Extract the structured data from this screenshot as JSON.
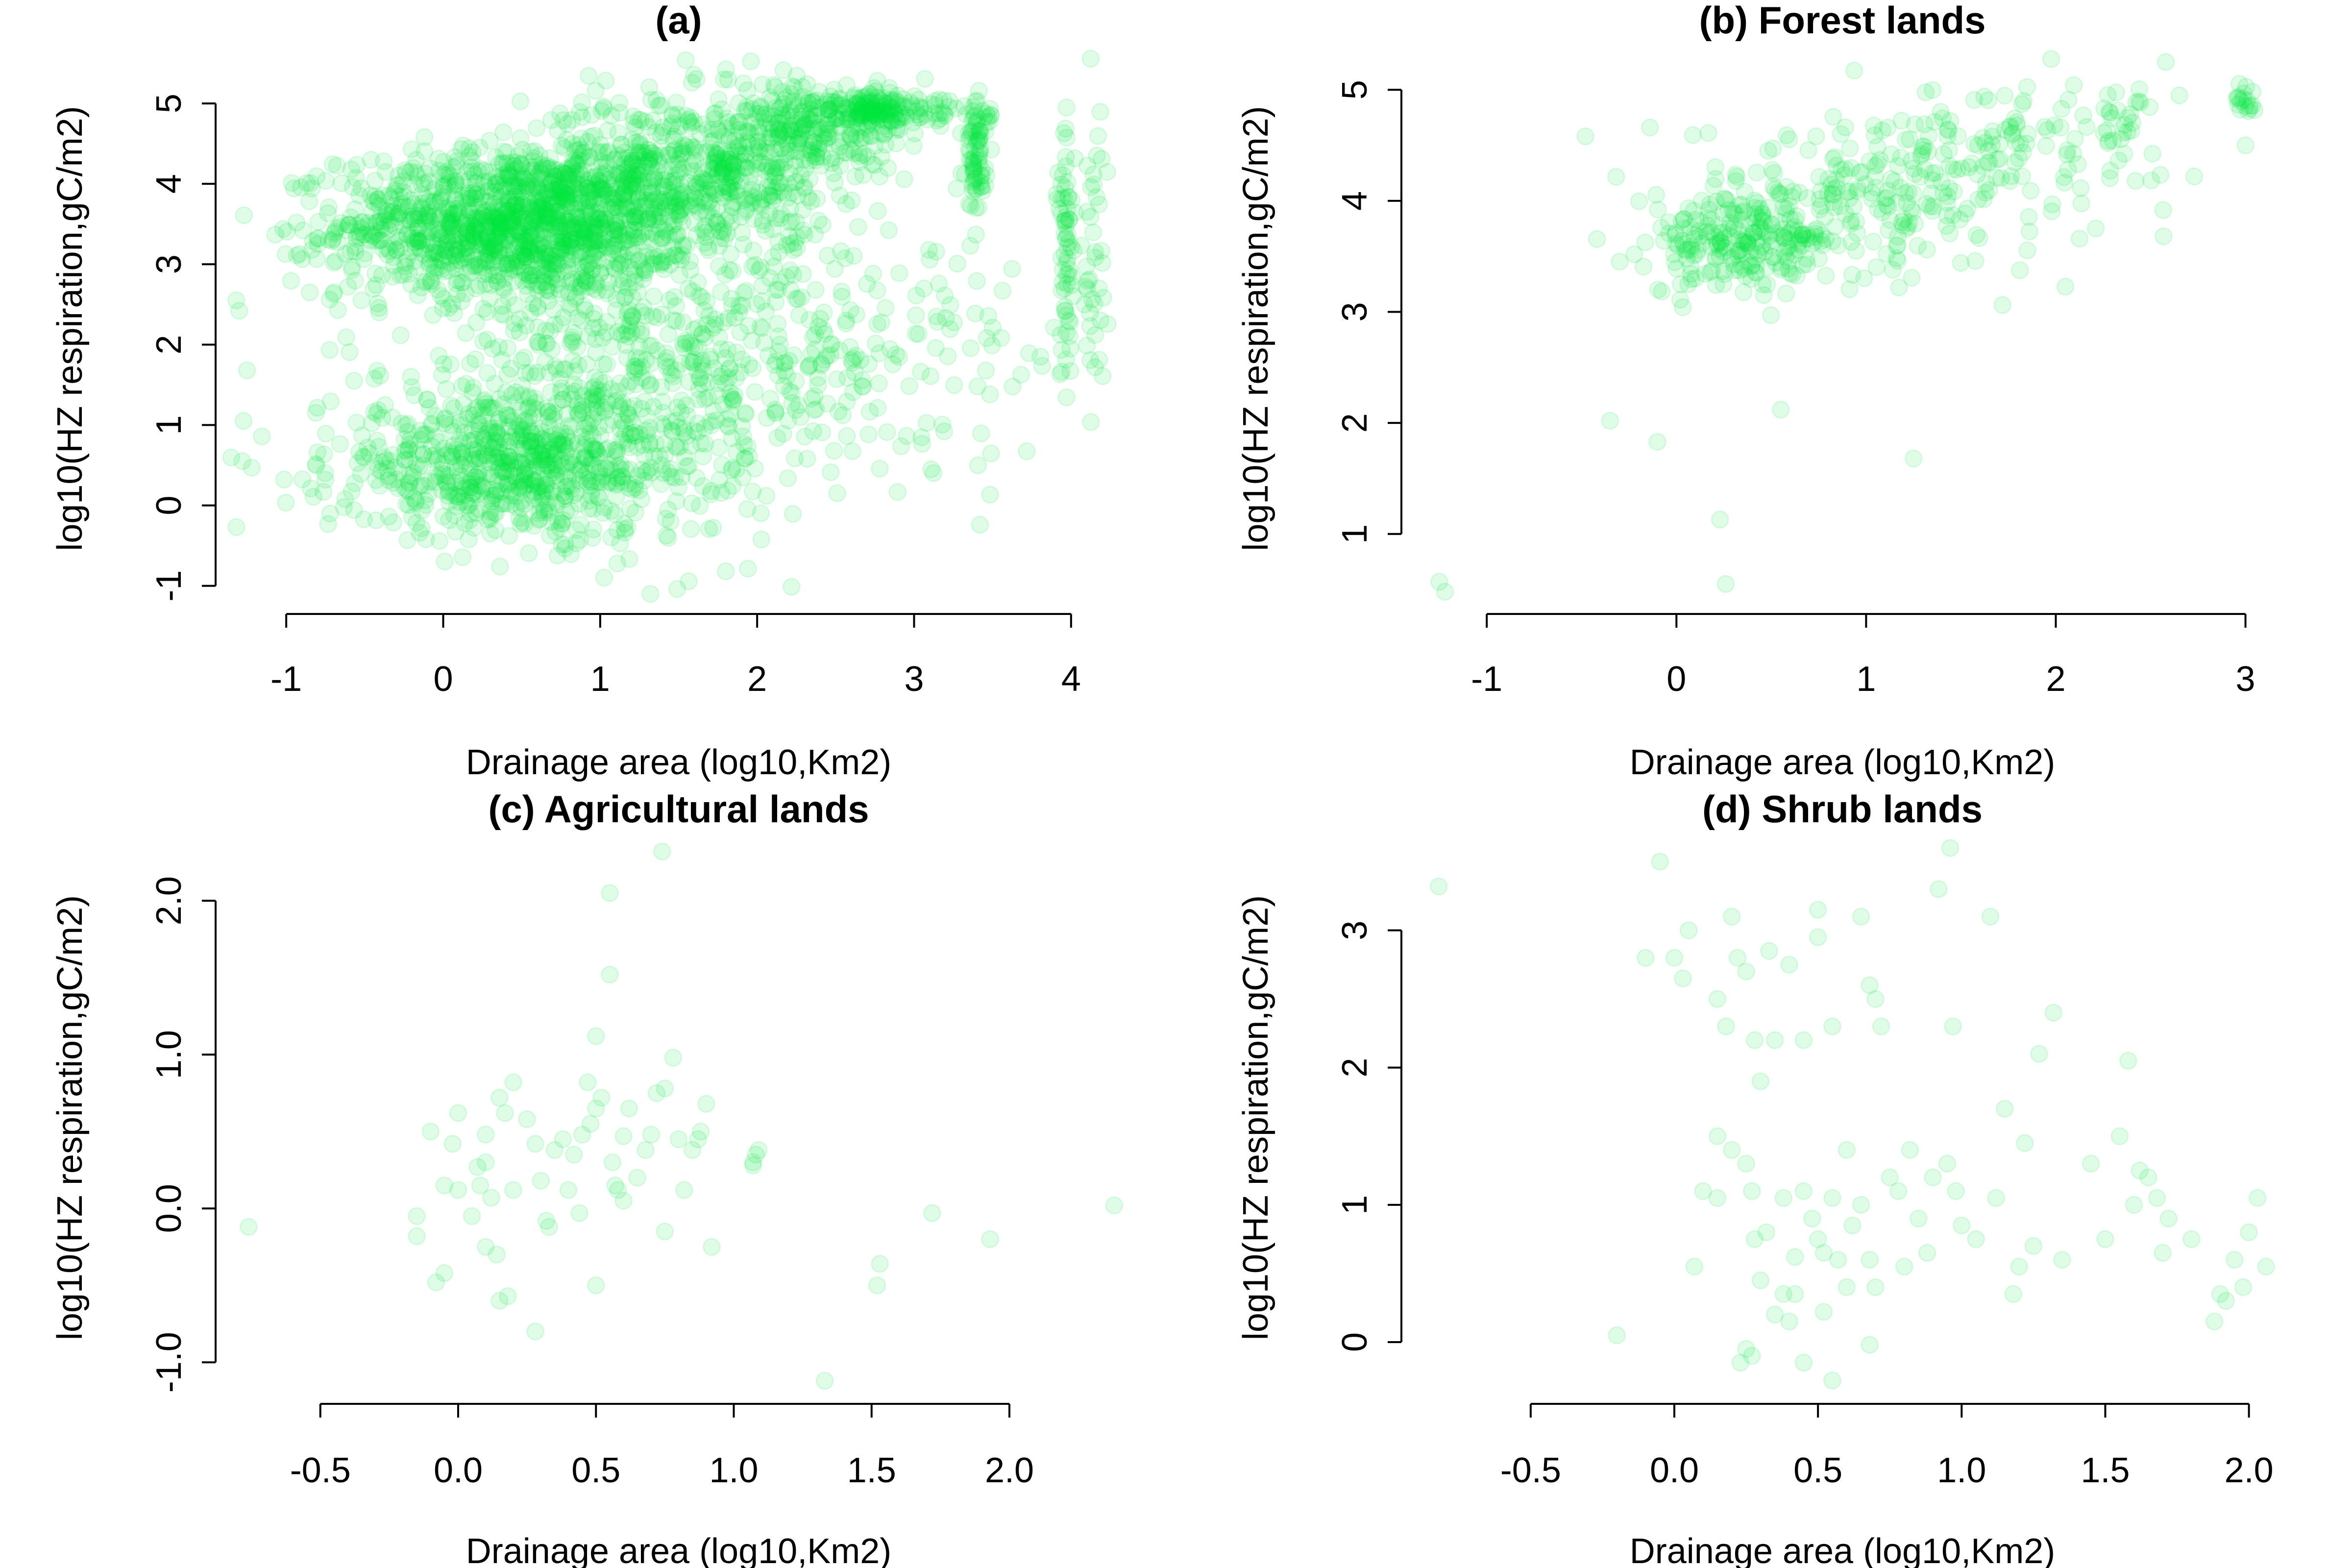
{
  "accent_color": "#00e83a",
  "point_alpha": 0.13,
  "chart_data": [
    {
      "type": "scatter",
      "title": "(a)",
      "xlabel": "Drainage area (log10,Km2)",
      "ylabel": "log10(HZ respiration,gC/m2)",
      "xlim": [
        -1.45,
        4.45
      ],
      "ylim": [
        -1.35,
        5.75
      ],
      "xticks": [
        -1,
        0,
        1,
        2,
        3,
        4
      ],
      "yticks": [
        -1,
        0,
        1,
        2,
        3,
        4,
        5
      ],
      "ytick_labels_rotated": true,
      "clusters": [
        {
          "cx": 0.45,
          "cy": 3.5,
          "sx": 0.55,
          "sy": 0.45,
          "n": 1300
        },
        {
          "cx": 1.5,
          "cy": 4.1,
          "sx": 0.5,
          "sy": 0.5,
          "n": 600
        },
        {
          "cx": 2.3,
          "cy": 4.7,
          "sx": 0.3,
          "sy": 0.3,
          "n": 250
        },
        {
          "cx": 0.5,
          "cy": 0.5,
          "sx": 0.6,
          "sy": 0.45,
          "n": 750
        },
        {
          "cx": 1.4,
          "cy": 1.8,
          "sx": 0.8,
          "sy": 0.8,
          "n": 600
        },
        {
          "cx": 2.75,
          "cy": 4.9,
          "sx": 0.12,
          "sy": 0.12,
          "n": 120
        },
        {
          "cx": 3.1,
          "cy": 4.9,
          "sx": 0.2,
          "sy": 0.15,
          "n": 60
        },
        {
          "cx": 3.4,
          "cy": 4.3,
          "sx": 0.03,
          "sy": 0.35,
          "n": 70
        },
        {
          "cx": 3.97,
          "cy": 3.2,
          "sx": 0.03,
          "sy": 0.8,
          "n": 70
        },
        {
          "cx": 4.15,
          "cy": 2.8,
          "sx": 0.04,
          "sy": 1.0,
          "n": 40
        },
        {
          "cx": 3.2,
          "cy": 2.0,
          "sx": 0.3,
          "sy": 0.9,
          "n": 60
        }
      ],
      "points": [
        [
          -1.3,
          2.42
        ],
        [
          -1.25,
          1.68
        ],
        [
          -1.28,
          0.55
        ],
        [
          -1.22,
          0.47
        ],
        [
          1.32,
          -1.1
        ],
        [
          1.8,
          -0.82
        ],
        [
          -0.8,
          3.32
        ],
        [
          -0.85,
          2.65
        ],
        [
          -0.72,
          -0.1
        ],
        [
          -0.75,
          0.32
        ]
      ]
    },
    {
      "type": "scatter",
      "title": "(b) Forest lands",
      "xlabel": "Drainage area (log10,Km2)",
      "ylabel": "log10(HZ respiration,gC/m2)",
      "xlim": [
        -1.45,
        3.2
      ],
      "ylim": [
        0.28,
        5.42
      ],
      "xticks": [
        -1,
        0,
        1,
        2,
        3
      ],
      "yticks": [
        1,
        2,
        3,
        4,
        5
      ],
      "ytick_labels_rotated": true,
      "clusters": [
        {
          "cx": 0.35,
          "cy": 3.6,
          "sx": 0.25,
          "sy": 0.22,
          "n": 220
        },
        {
          "cx": 1.0,
          "cy": 4.1,
          "sx": 0.45,
          "sy": 0.35,
          "n": 220
        },
        {
          "cx": 1.9,
          "cy": 4.5,
          "sx": 0.35,
          "sy": 0.3,
          "n": 90
        },
        {
          "cx": 3.0,
          "cy": 4.9,
          "sx": 0.03,
          "sy": 0.08,
          "n": 18
        },
        {
          "cx": 2.35,
          "cy": 4.75,
          "sx": 0.08,
          "sy": 0.12,
          "n": 22
        }
      ],
      "points": [
        [
          -1.25,
          0.57
        ],
        [
          -1.22,
          0.48
        ],
        [
          0.26,
          0.55
        ],
        [
          0.23,
          1.13
        ],
        [
          -0.35,
          2.02
        ],
        [
          -0.1,
          1.83
        ],
        [
          1.25,
          1.68
        ],
        [
          0.55,
          2.12
        ],
        [
          -0.48,
          4.58
        ],
        [
          2.58,
          5.25
        ],
        [
          2.73,
          4.22
        ],
        [
          3.0,
          4.5
        ]
      ]
    },
    {
      "type": "scatter",
      "title": "(c) Agricultural lands",
      "xlabel": "Drainage area (log10,Km2)",
      "ylabel": "log10(HZ respiration,gC/m2)",
      "xlim": [
        -0.88,
        2.48
      ],
      "ylim": [
        -1.27,
        2.45
      ],
      "xticks": [
        -0.5,
        0.0,
        0.5,
        1.0,
        1.5,
        2.0
      ],
      "xtick_labels": [
        "-0.5",
        "0.0",
        "0.5",
        "1.0",
        "1.5",
        "2.0"
      ],
      "yticks": [
        -1.0,
        0.0,
        1.0,
        2.0
      ],
      "ytick_labels": [
        "-1.0",
        "0.0",
        "1.0",
        "2.0"
      ],
      "ytick_labels_rotated": true,
      "points": [
        [
          -0.76,
          -0.12
        ],
        [
          -0.1,
          0.5
        ],
        [
          -0.05,
          -0.42
        ],
        [
          -0.08,
          -0.48
        ],
        [
          -0.15,
          -0.05
        ],
        [
          -0.15,
          -0.18
        ],
        [
          -0.05,
          0.15
        ],
        [
          -0.02,
          0.42
        ],
        [
          0.0,
          0.62
        ],
        [
          0.0,
          0.12
        ],
        [
          0.05,
          -0.05
        ],
        [
          0.07,
          0.27
        ],
        [
          0.08,
          0.15
        ],
        [
          0.1,
          0.3
        ],
        [
          0.12,
          0.07
        ],
        [
          0.1,
          0.48
        ],
        [
          0.15,
          0.72
        ],
        [
          0.17,
          0.62
        ],
        [
          0.1,
          -0.25
        ],
        [
          0.14,
          -0.3
        ],
        [
          0.15,
          -0.6
        ],
        [
          0.18,
          -0.57
        ],
        [
          0.2,
          0.12
        ],
        [
          0.2,
          0.82
        ],
        [
          0.25,
          0.58
        ],
        [
          0.28,
          0.42
        ],
        [
          0.3,
          0.18
        ],
        [
          0.32,
          -0.08
        ],
        [
          0.33,
          -0.12
        ],
        [
          0.35,
          0.38
        ],
        [
          0.38,
          0.45
        ],
        [
          0.4,
          0.12
        ],
        [
          0.42,
          0.35
        ],
        [
          0.44,
          -0.03
        ],
        [
          0.45,
          0.48
        ],
        [
          0.47,
          0.82
        ],
        [
          0.48,
          0.55
        ],
        [
          0.5,
          0.65
        ],
        [
          0.5,
          1.12
        ],
        [
          0.52,
          0.72
        ],
        [
          0.55,
          2.05
        ],
        [
          0.55,
          1.52
        ],
        [
          0.56,
          0.3
        ],
        [
          0.57,
          0.15
        ],
        [
          0.6,
          0.47
        ],
        [
          0.62,
          0.65
        ],
        [
          0.65,
          0.2
        ],
        [
          0.68,
          0.38
        ],
        [
          0.7,
          0.48
        ],
        [
          0.72,
          0.75
        ],
        [
          0.74,
          2.32
        ],
        [
          0.75,
          0.78
        ],
        [
          0.78,
          0.98
        ],
        [
          0.8,
          0.45
        ],
        [
          0.82,
          0.12
        ],
        [
          0.85,
          0.38
        ],
        [
          0.87,
          0.45
        ],
        [
          0.88,
          0.5
        ],
        [
          0.9,
          0.68
        ],
        [
          0.92,
          -0.25
        ],
        [
          0.5,
          -0.5
        ],
        [
          0.28,
          -0.8
        ],
        [
          0.58,
          0.12
        ],
        [
          0.75,
          -0.15
        ],
        [
          0.6,
          0.05
        ],
        [
          1.07,
          0.3
        ],
        [
          1.08,
          0.35
        ],
        [
          1.09,
          0.38
        ],
        [
          1.07,
          0.28
        ],
        [
          1.33,
          -1.12
        ],
        [
          1.52,
          -0.5
        ],
        [
          1.53,
          -0.36
        ],
        [
          1.72,
          -0.03
        ],
        [
          1.93,
          -0.2
        ],
        [
          2.38,
          0.02
        ]
      ]
    },
    {
      "type": "scatter",
      "title": "(d) Shrub lands",
      "xlabel": "Drainage area (log10,Km2)",
      "ylabel": "log10(HZ respiration,gC/m2)",
      "xlim": [
        -0.95,
        2.12
      ],
      "ylim": [
        -0.45,
        3.72
      ],
      "xticks": [
        -0.5,
        0.0,
        0.5,
        1.0,
        1.5,
        2.0
      ],
      "xtick_labels": [
        "-0.5",
        "0.0",
        "0.5",
        "1.0",
        "1.5",
        "2.0"
      ],
      "yticks": [
        0,
        1,
        2,
        3
      ],
      "ytick_labels_rotated": true,
      "points": [
        [
          -0.82,
          3.32
        ],
        [
          -0.05,
          3.5
        ],
        [
          0.96,
          3.6
        ],
        [
          -0.2,
          0.05
        ],
        [
          -0.1,
          2.8
        ],
        [
          0.0,
          2.8
        ],
        [
          0.03,
          2.65
        ],
        [
          0.05,
          3.0
        ],
        [
          0.07,
          0.55
        ],
        [
          0.15,
          2.5
        ],
        [
          0.18,
          2.3
        ],
        [
          0.2,
          3.1
        ],
        [
          0.22,
          2.8
        ],
        [
          0.25,
          2.7
        ],
        [
          0.28,
          2.2
        ],
        [
          0.3,
          1.9
        ],
        [
          0.33,
          2.85
        ],
        [
          0.35,
          2.2
        ],
        [
          0.38,
          1.05
        ],
        [
          0.4,
          2.75
        ],
        [
          0.45,
          2.2
        ],
        [
          0.5,
          3.15
        ],
        [
          0.5,
          2.95
        ],
        [
          0.55,
          2.3
        ],
        [
          0.6,
          1.4
        ],
        [
          0.65,
          3.1
        ],
        [
          0.68,
          2.6
        ],
        [
          0.7,
          2.5
        ],
        [
          0.72,
          2.3
        ],
        [
          0.1,
          1.1
        ],
        [
          0.15,
          1.05
        ],
        [
          0.15,
          1.5
        ],
        [
          0.2,
          1.4
        ],
        [
          0.25,
          1.3
        ],
        [
          0.27,
          1.1
        ],
        [
          0.28,
          0.75
        ],
        [
          0.3,
          0.45
        ],
        [
          0.32,
          0.8
        ],
        [
          0.35,
          0.2
        ],
        [
          0.38,
          0.35
        ],
        [
          0.4,
          0.15
        ],
        [
          0.42,
          0.62
        ],
        [
          0.45,
          1.1
        ],
        [
          0.48,
          0.9
        ],
        [
          0.5,
          0.75
        ],
        [
          0.52,
          0.65
        ],
        [
          0.55,
          1.05
        ],
        [
          0.57,
          0.6
        ],
        [
          0.6,
          0.4
        ],
        [
          0.62,
          0.85
        ],
        [
          0.65,
          1.0
        ],
        [
          0.68,
          0.6
        ],
        [
          0.7,
          0.4
        ],
        [
          0.75,
          1.2
        ],
        [
          0.78,
          1.1
        ],
        [
          0.8,
          0.55
        ],
        [
          0.82,
          1.4
        ],
        [
          0.85,
          0.9
        ],
        [
          0.88,
          0.65
        ],
        [
          0.9,
          1.2
        ],
        [
          0.92,
          3.3
        ],
        [
          0.95,
          1.3
        ],
        [
          0.97,
          2.3
        ],
        [
          0.98,
          1.1
        ],
        [
          1.0,
          0.85
        ],
        [
          1.05,
          0.75
        ],
        [
          1.1,
          3.1
        ],
        [
          1.12,
          1.05
        ],
        [
          1.15,
          1.7
        ],
        [
          1.18,
          0.35
        ],
        [
          1.2,
          0.55
        ],
        [
          1.22,
          1.45
        ],
        [
          1.25,
          0.7
        ],
        [
          1.27,
          2.1
        ],
        [
          1.32,
          2.4
        ],
        [
          1.35,
          0.6
        ],
        [
          1.45,
          1.3
        ],
        [
          1.5,
          0.75
        ],
        [
          1.55,
          1.5
        ],
        [
          1.58,
          2.05
        ],
        [
          1.6,
          1.0
        ],
        [
          1.62,
          1.25
        ],
        [
          1.65,
          1.2
        ],
        [
          1.68,
          1.05
        ],
        [
          1.7,
          0.65
        ],
        [
          1.72,
          0.9
        ],
        [
          1.8,
          0.75
        ],
        [
          1.88,
          0.15
        ],
        [
          1.9,
          0.35
        ],
        [
          1.92,
          0.3
        ],
        [
          1.95,
          0.6
        ],
        [
          1.98,
          0.4
        ],
        [
          2.0,
          0.8
        ],
        [
          2.03,
          1.05
        ],
        [
          2.06,
          0.55
        ],
        [
          0.25,
          -0.05
        ],
        [
          0.27,
          -0.1
        ],
        [
          0.23,
          -0.15
        ],
        [
          0.45,
          -0.15
        ],
        [
          0.55,
          -0.28
        ],
        [
          0.68,
          -0.02
        ],
        [
          0.52,
          0.22
        ],
        [
          0.42,
          0.35
        ]
      ]
    }
  ]
}
